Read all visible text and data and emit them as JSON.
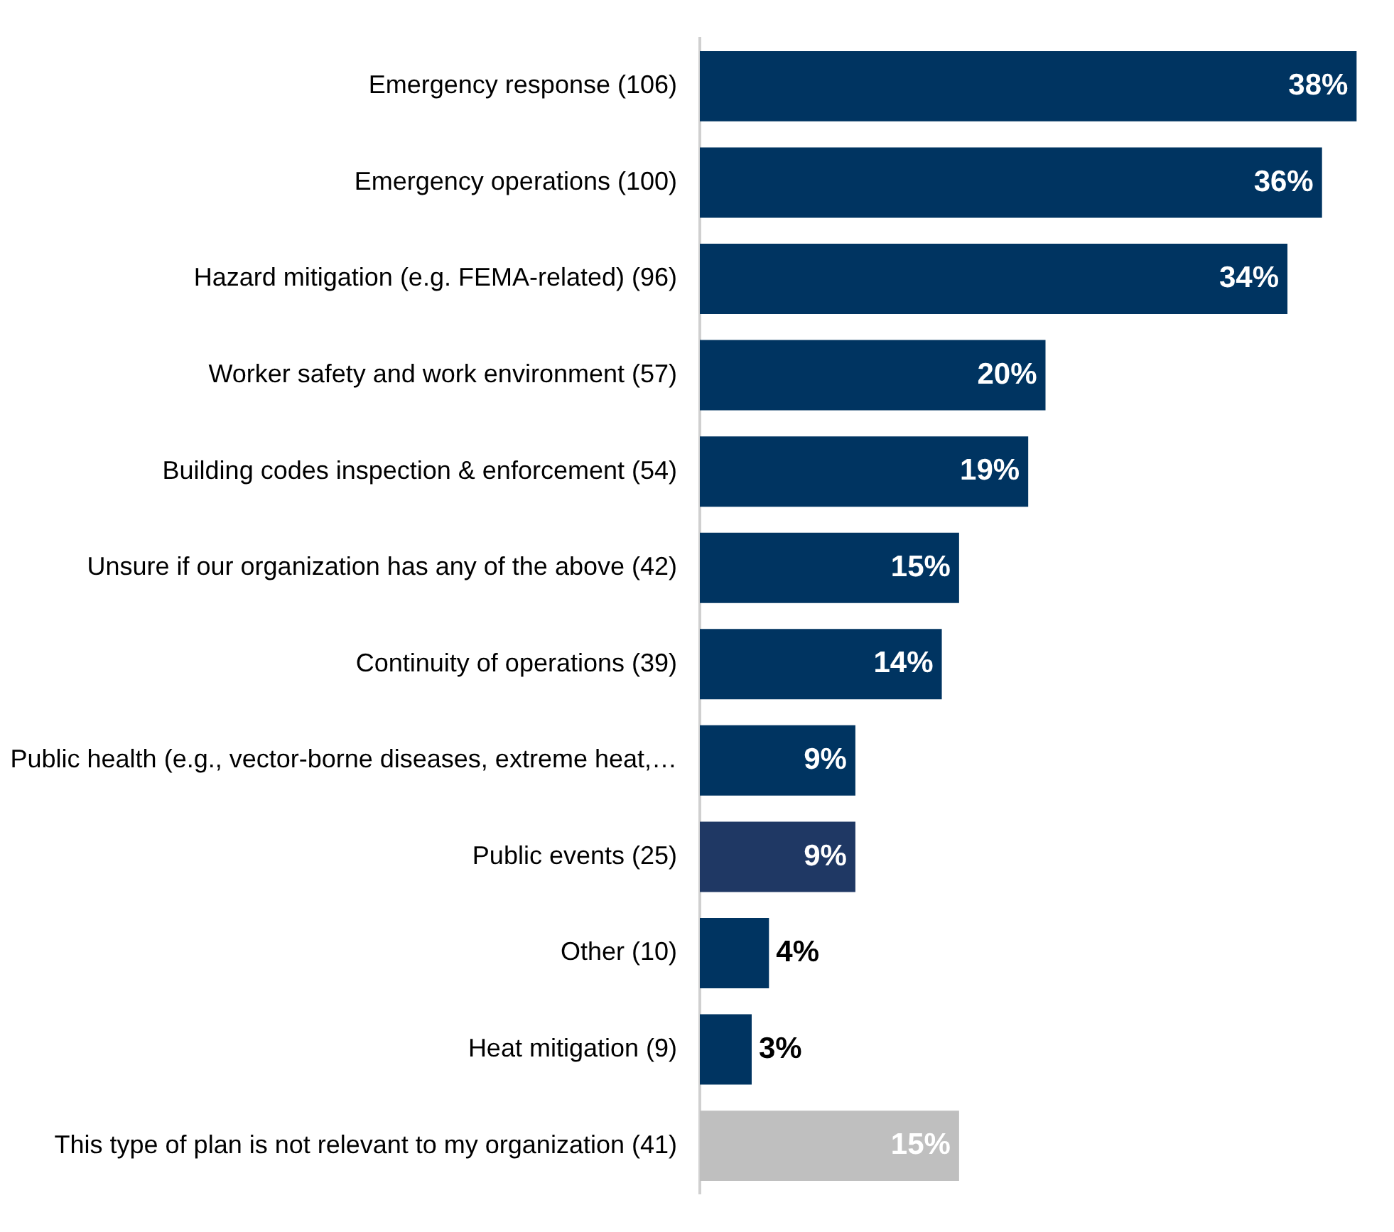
{
  "chart_data": {
    "type": "bar",
    "orientation": "horizontal",
    "categories": [
      "Emergency response (106)",
      "Emergency operations (100)",
      "Hazard mitigation (e.g. FEMA-related) (96)",
      "Worker safety and work environment (57)",
      "Building codes inspection & enforcement (54)",
      "Unsure if our organization has any of the above (42)",
      "Continuity of operations (39)",
      "Public health (e.g., vector-borne diseases, extreme heat,…",
      "Public events (25)",
      "Other (10)",
      "Heat mitigation (9)",
      "This type of plan is not relevant to my organization (41)"
    ],
    "values": [
      38,
      36,
      34,
      20,
      19,
      15,
      14,
      9,
      9,
      4,
      3,
      15
    ],
    "value_labels": [
      "38%",
      "36%",
      "34%",
      "20%",
      "19%",
      "15%",
      "14%",
      "9%",
      "9%",
      "4%",
      "3%",
      "15%"
    ],
    "colors": [
      "#003461",
      "#003461",
      "#003461",
      "#003461",
      "#003461",
      "#003461",
      "#003461",
      "#003461",
      "#1f3864",
      "#003461",
      "#003461",
      "#bfbfbf"
    ],
    "legend": false,
    "grid": false
  }
}
